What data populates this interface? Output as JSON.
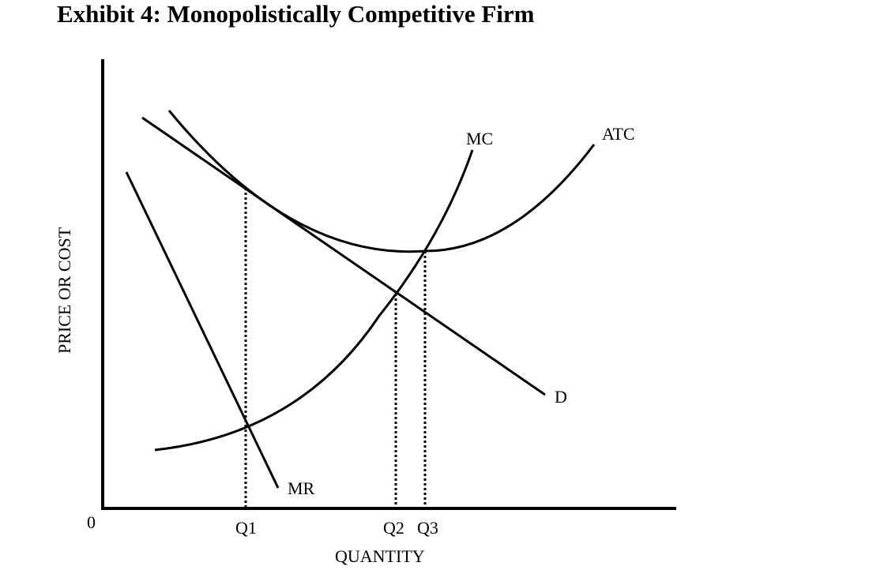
{
  "title": "Exhibit 4: Monopolistically Competitive Firm",
  "axes": {
    "y_label": "PRICE OR COST",
    "x_label": "QUANTITY",
    "origin": "0"
  },
  "quantity_ticks": [
    "Q1",
    "Q2",
    "Q3"
  ],
  "curves": {
    "mc": "MC",
    "atc": "ATC",
    "demand": "D",
    "mr": "MR"
  },
  "colors": {
    "ink": "#000000",
    "background": "#ffffff"
  }
}
